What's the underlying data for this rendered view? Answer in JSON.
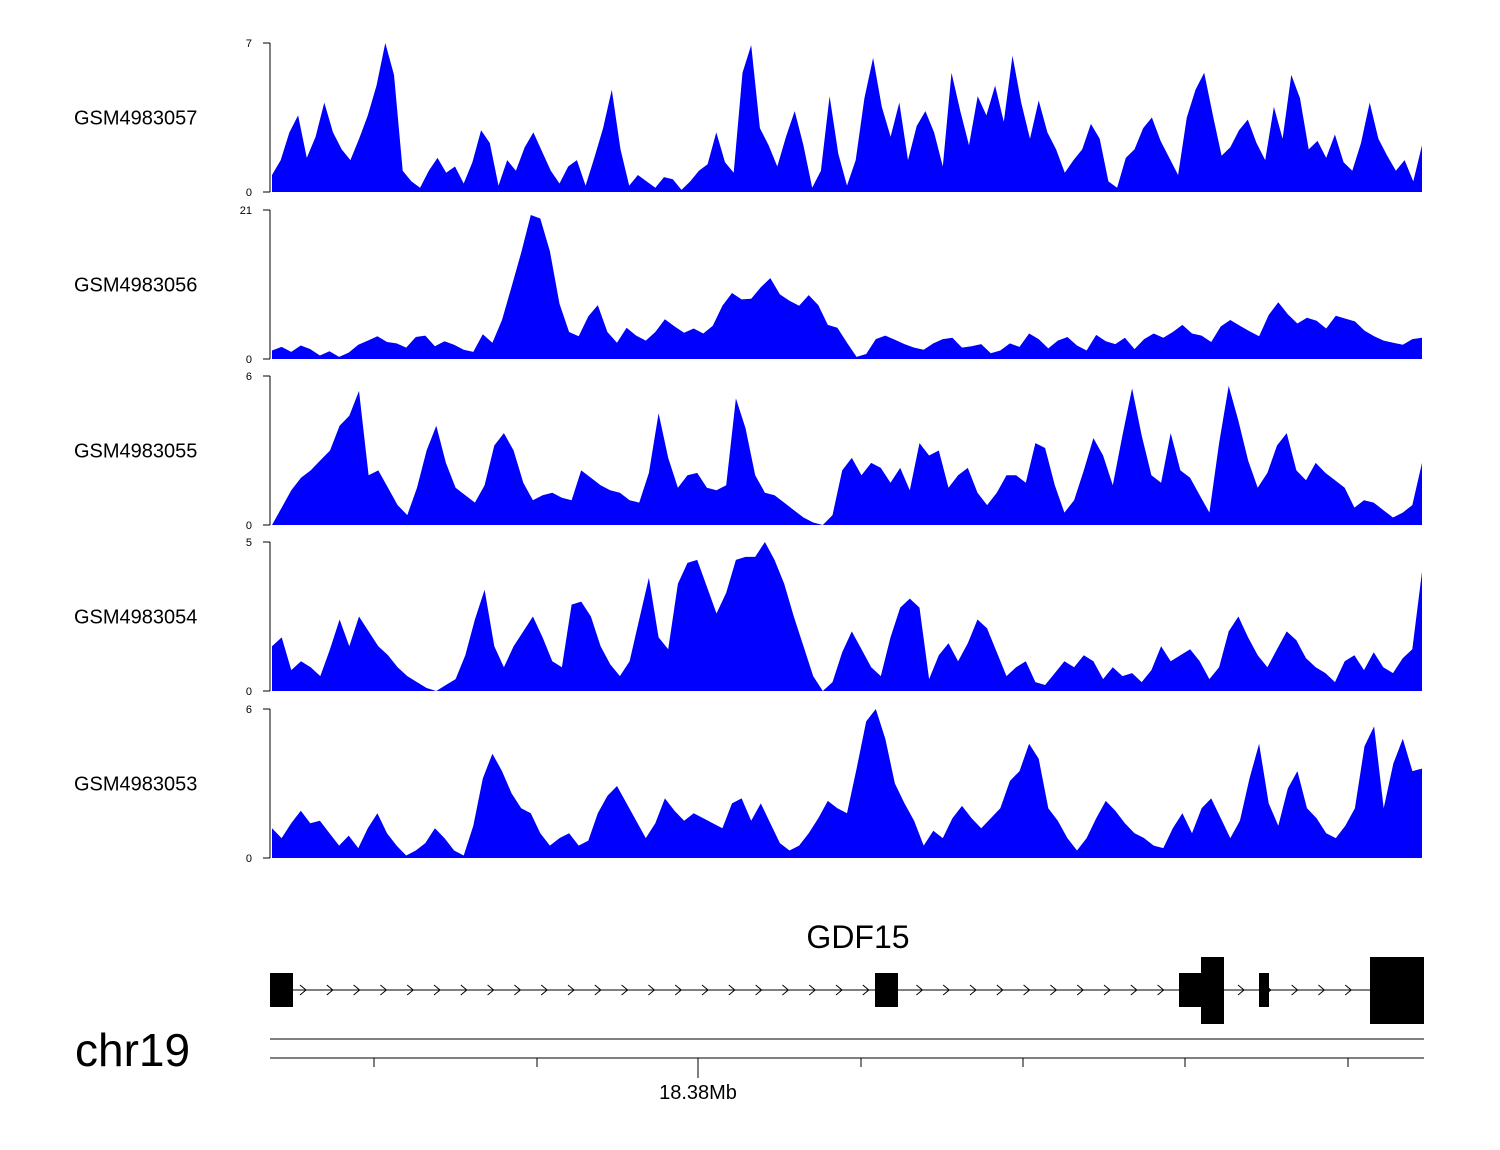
{
  "chart_data": {
    "type": "area",
    "title": "",
    "fill_color": "#0000ff",
    "series": [
      {
        "name": "GSM4983057",
        "ylim": [
          0,
          7
        ],
        "y_ticks": [
          "0",
          "7"
        ],
        "values": [
          0.8,
          1.5,
          2.8,
          3.6,
          1.6,
          2.6,
          4.2,
          2.8,
          2.0,
          1.5,
          2.5,
          3.6,
          5.0,
          7.0,
          5.5,
          1.0,
          0.5,
          0.2,
          1.0,
          1.6,
          0.9,
          1.2,
          0.4,
          1.4,
          2.9,
          2.3,
          0.3,
          1.5,
          1.0,
          2.1,
          2.8,
          1.9,
          1.0,
          0.4,
          1.2,
          1.5,
          0.3,
          1.6,
          3.0,
          4.8,
          2.0,
          0.3,
          0.8,
          0.5,
          0.2,
          0.7,
          0.6,
          0.1,
          0.5,
          1.0,
          1.3,
          2.8,
          1.4,
          0.9,
          5.6,
          6.9,
          3.0,
          2.2,
          1.2,
          2.6,
          3.8,
          2.2,
          0.2,
          1.0,
          4.5,
          1.8,
          0.3,
          1.5,
          4.4,
          6.3,
          4.0,
          2.6,
          4.2,
          1.5,
          3.1,
          3.8,
          2.8,
          1.2,
          5.6,
          3.8,
          2.2,
          4.5,
          3.6,
          5.0,
          3.3,
          6.4,
          4.2,
          2.5,
          4.3,
          2.8,
          2.0,
          0.9,
          1.5,
          2.0,
          3.2,
          2.5,
          0.5,
          0.2,
          1.6,
          2.0,
          3.0,
          3.5,
          2.4,
          1.6,
          0.8,
          3.5,
          4.8,
          5.6,
          3.6,
          1.7,
          2.1,
          2.9,
          3.4,
          2.3,
          1.5,
          4.0,
          2.5,
          5.5,
          4.4,
          2.0,
          2.4,
          1.6,
          2.7,
          1.4,
          1.0,
          2.3,
          4.2,
          2.5,
          1.7,
          1.0,
          1.5,
          0.5,
          2.2
        ]
      },
      {
        "name": "GSM4983056",
        "ylim": [
          0,
          21
        ],
        "y_ticks": [
          "0",
          "21"
        ],
        "values": [
          1.2,
          1.7,
          1.0,
          1.9,
          1.4,
          0.5,
          1.1,
          0.3,
          0.9,
          2.0,
          2.6,
          3.2,
          2.4,
          2.2,
          1.6,
          3.1,
          3.3,
          1.8,
          2.5,
          2.0,
          1.3,
          1.0,
          3.5,
          2.3,
          5.5,
          10.2,
          15.0,
          20.3,
          19.8,
          15.2,
          7.8,
          3.8,
          3.2,
          6.0,
          7.6,
          3.8,
          2.3,
          4.4,
          3.3,
          2.6,
          3.8,
          5.6,
          4.6,
          3.7,
          4.3,
          3.6,
          4.7,
          7.5,
          9.3,
          8.4,
          8.5,
          10.1,
          11.4,
          9.1,
          8.2,
          7.5,
          9.0,
          7.6,
          4.8,
          4.4,
          2.3,
          0.3,
          0.7,
          2.8,
          3.3,
          2.7,
          2.1,
          1.6,
          1.3,
          2.2,
          2.8,
          3.0,
          1.6,
          1.8,
          2.1,
          0.8,
          1.2,
          2.2,
          1.7,
          3.6,
          2.8,
          1.5,
          2.6,
          3.1,
          1.9,
          1.2,
          3.4,
          2.5,
          2.1,
          3.0,
          1.4,
          2.8,
          3.6,
          3.0,
          3.8,
          4.8,
          3.6,
          3.3,
          2.4,
          4.6,
          5.5,
          4.7,
          3.9,
          3.2,
          6.2,
          8.0,
          6.3,
          5.0,
          5.8,
          5.4,
          4.3,
          6.1,
          5.7,
          5.3,
          4.0,
          3.2,
          2.6,
          2.3,
          2.0,
          2.8,
          3.0
        ]
      },
      {
        "name": "GSM4983055",
        "ylim": [
          0,
          6
        ],
        "y_ticks": [
          "0",
          "6"
        ],
        "values": [
          0.0,
          0.7,
          1.4,
          1.9,
          2.2,
          2.6,
          3.0,
          4.0,
          4.4,
          5.4,
          2.0,
          2.2,
          1.5,
          0.8,
          0.4,
          1.5,
          3.0,
          4.0,
          2.5,
          1.5,
          1.2,
          0.9,
          1.6,
          3.2,
          3.7,
          3.0,
          1.7,
          1.0,
          1.2,
          1.3,
          1.1,
          1.0,
          2.2,
          1.9,
          1.6,
          1.4,
          1.3,
          1.0,
          0.9,
          2.1,
          4.5,
          2.7,
          1.5,
          2.0,
          2.1,
          1.5,
          1.4,
          1.6,
          5.1,
          3.9,
          2.0,
          1.3,
          1.2,
          0.9,
          0.6,
          0.3,
          0.1,
          0.0,
          0.4,
          2.2,
          2.7,
          2.0,
          2.5,
          2.3,
          1.7,
          2.3,
          1.4,
          3.3,
          2.8,
          3.0,
          1.5,
          2.0,
          2.3,
          1.3,
          0.8,
          1.3,
          2.0,
          2.0,
          1.7,
          3.3,
          3.1,
          1.6,
          0.5,
          1.0,
          2.2,
          3.5,
          2.8,
          1.6,
          3.6,
          5.5,
          3.6,
          2.0,
          1.7,
          3.7,
          2.2,
          1.9,
          1.2,
          0.5,
          3.3,
          5.6,
          4.2,
          2.6,
          1.5,
          2.1,
          3.2,
          3.7,
          2.2,
          1.8,
          2.5,
          2.1,
          1.8,
          1.5,
          0.7,
          1.0,
          0.9,
          0.6,
          0.3,
          0.5,
          0.8,
          2.5
        ]
      },
      {
        "name": "GSM4983054",
        "ylim": [
          0,
          5
        ],
        "y_ticks": [
          "0",
          "5"
        ],
        "values": [
          1.5,
          1.8,
          0.7,
          1.0,
          0.8,
          0.5,
          1.4,
          2.4,
          1.5,
          2.5,
          2.0,
          1.5,
          1.2,
          0.8,
          0.5,
          0.3,
          0.1,
          0.0,
          0.2,
          0.4,
          1.2,
          2.4,
          3.4,
          1.5,
          0.8,
          1.5,
          2.0,
          2.5,
          1.8,
          1.0,
          0.8,
          2.9,
          3.0,
          2.5,
          1.5,
          0.9,
          0.5,
          1.0,
          2.4,
          3.8,
          1.8,
          1.4,
          3.6,
          4.3,
          4.4,
          3.5,
          2.6,
          3.3,
          4.4,
          4.5,
          4.5,
          5.0,
          4.4,
          3.6,
          2.5,
          1.5,
          0.5,
          0.0,
          0.3,
          1.3,
          2.0,
          1.4,
          0.8,
          0.5,
          1.8,
          2.8,
          3.1,
          2.8,
          0.4,
          1.2,
          1.6,
          1.0,
          1.6,
          2.4,
          2.1,
          1.3,
          0.5,
          0.8,
          1.0,
          0.3,
          0.2,
          0.6,
          1.0,
          0.8,
          1.2,
          1.0,
          0.4,
          0.8,
          0.5,
          0.6,
          0.3,
          0.7,
          1.5,
          1.0,
          1.2,
          1.4,
          1.0,
          0.4,
          0.8,
          2.0,
          2.5,
          1.8,
          1.2,
          0.8,
          1.4,
          2.0,
          1.7,
          1.1,
          0.8,
          0.6,
          0.3,
          1.0,
          1.2,
          0.7,
          1.3,
          0.8,
          0.6,
          1.1,
          1.4,
          4.0
        ]
      },
      {
        "name": "GSM4983053",
        "ylim": [
          0,
          6
        ],
        "y_ticks": [
          "0",
          "6"
        ],
        "values": [
          1.2,
          0.8,
          1.4,
          1.9,
          1.4,
          1.5,
          1.0,
          0.5,
          0.9,
          0.4,
          1.2,
          1.8,
          1.0,
          0.5,
          0.1,
          0.3,
          0.6,
          1.2,
          0.8,
          0.3,
          0.1,
          1.3,
          3.2,
          4.2,
          3.5,
          2.6,
          2.0,
          1.8,
          1.0,
          0.5,
          0.8,
          1.0,
          0.5,
          0.7,
          1.8,
          2.5,
          2.9,
          2.2,
          1.5,
          0.8,
          1.4,
          2.4,
          1.9,
          1.5,
          1.8,
          1.6,
          1.4,
          1.2,
          2.2,
          2.4,
          1.5,
          2.2,
          1.4,
          0.6,
          0.3,
          0.5,
          1.0,
          1.6,
          2.3,
          2.0,
          1.8,
          3.6,
          5.5,
          6.0,
          4.8,
          3.0,
          2.2,
          1.5,
          0.5,
          1.1,
          0.8,
          1.6,
          2.1,
          1.6,
          1.2,
          1.6,
          2.0,
          3.1,
          3.5,
          4.6,
          4.0,
          2.0,
          1.5,
          0.8,
          0.3,
          0.8,
          1.6,
          2.3,
          1.9,
          1.4,
          1.0,
          0.8,
          0.5,
          0.4,
          1.2,
          1.8,
          1.0,
          2.0,
          2.4,
          1.6,
          0.8,
          1.5,
          3.2,
          4.6,
          2.2,
          1.3,
          2.8,
          3.5,
          2.0,
          1.6,
          1.0,
          0.8,
          1.3,
          2.0,
          4.5,
          5.3,
          2.0,
          3.8,
          4.8,
          3.5,
          3.6
        ]
      }
    ],
    "gene_track": {
      "gene_name": "GDF15",
      "chromosome": "chr19",
      "x_tick_label": "18.38Mb"
    }
  }
}
